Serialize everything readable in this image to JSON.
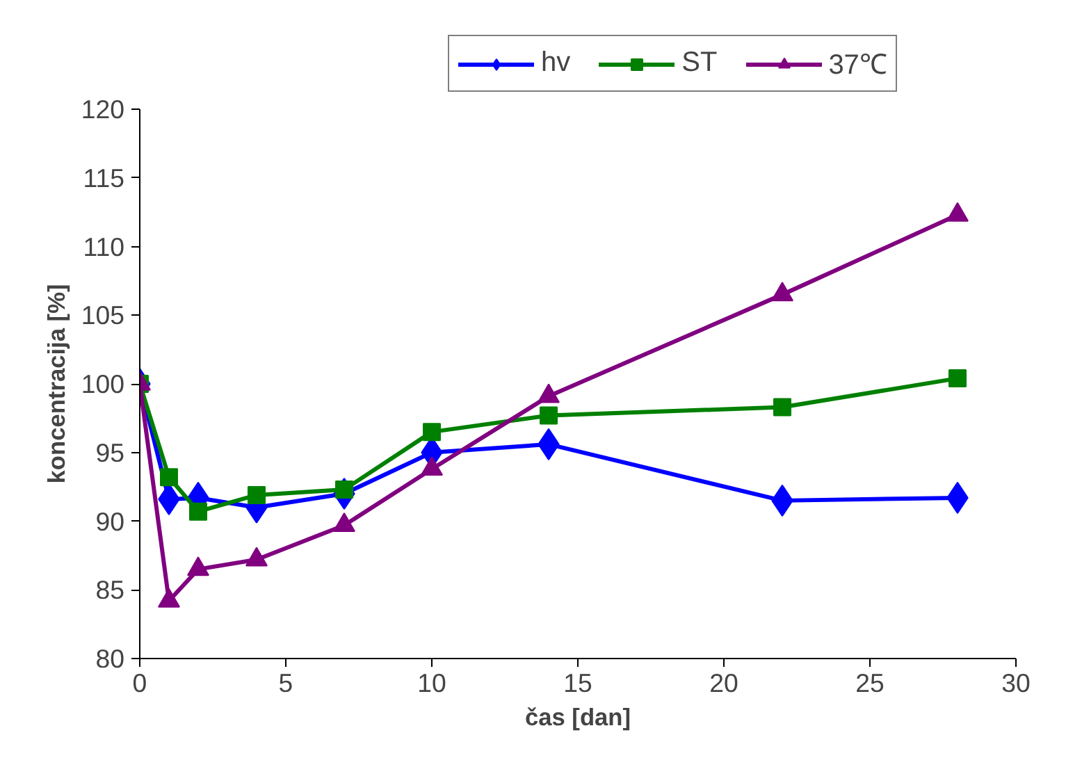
{
  "chart_data": {
    "type": "line",
    "xlabel": "čas [dan]",
    "ylabel": "koncentracija [%]",
    "x": [
      0,
      1,
      2,
      4,
      7,
      10,
      14,
      22,
      28
    ],
    "xlim": [
      0,
      30
    ],
    "xticks": [
      0,
      5,
      10,
      15,
      20,
      25,
      30
    ],
    "ylim": [
      80,
      120
    ],
    "yticks": [
      80,
      85,
      90,
      95,
      100,
      105,
      110,
      115,
      120
    ],
    "grid": false,
    "legend": "top",
    "line_style": "solid",
    "series": [
      {
        "name": "hv",
        "color": "#0000ff",
        "marker": "diamond",
        "values": [
          100,
          91.6,
          91.7,
          91.0,
          92.0,
          95.0,
          95.6,
          91.5,
          91.7
        ]
      },
      {
        "name": "ST",
        "color": "#008000",
        "marker": "square",
        "values": [
          100,
          93.2,
          90.7,
          91.9,
          92.3,
          96.5,
          97.7,
          98.3,
          100.4
        ]
      },
      {
        "name": "37℃",
        "color": "#800080",
        "marker": "triangle",
        "values": [
          100,
          84.2,
          86.5,
          87.2,
          89.7,
          93.8,
          99.1,
          106.5,
          112.3
        ]
      }
    ]
  }
}
